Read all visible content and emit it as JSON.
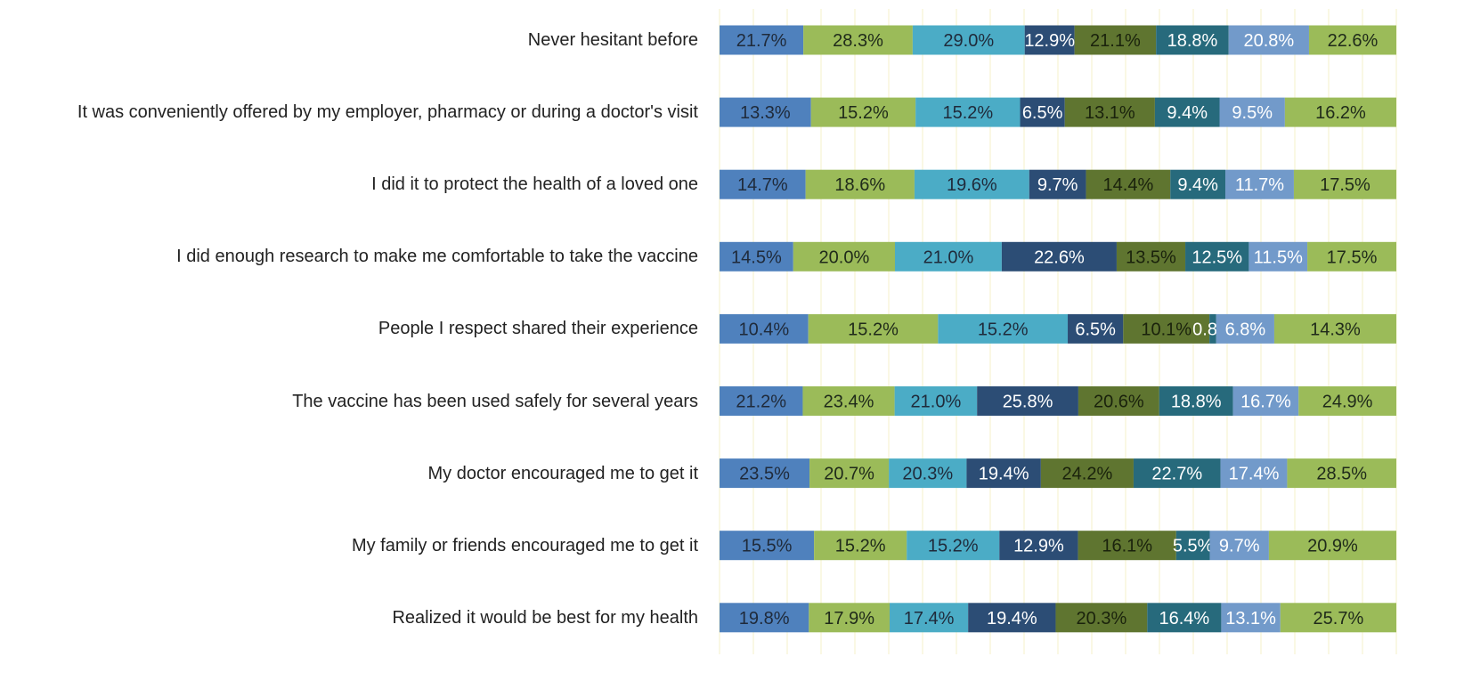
{
  "chart_data": {
    "type": "bar",
    "orientation": "horizontal",
    "stacking": "percent",
    "grid": true,
    "xlim": [
      0,
      100
    ],
    "xticks": [
      0,
      5,
      10,
      15,
      20,
      25,
      30,
      35,
      40,
      45,
      50,
      55,
      60,
      65,
      70,
      75,
      80,
      85,
      90,
      95,
      100
    ],
    "categories": [
      "Never hesitant before",
      "It was conveniently offered by my employer, pharmacy or during a doctor's visit",
      "I did it to protect the health of a loved one",
      "I did enough research to make me comfortable  to take the vaccine",
      "People I respect shared their experience",
      "The vaccine has been used safely for several years",
      "My doctor encouraged me to get it",
      "My family or friends encouraged me to get it",
      "Realized it would be best for my health"
    ],
    "series": [
      {
        "color": "#4f81bd",
        "label_color": "#1f2a3a",
        "values": [
          21.7,
          13.3,
          14.7,
          14.5,
          10.4,
          21.2,
          23.5,
          15.5,
          19.8
        ],
        "value_labels": [
          "21.7%",
          "13.3%",
          "14.7%",
          "14.5%",
          "10.4%",
          "21.2%",
          "23.5%",
          "15.5%",
          "19.8%"
        ]
      },
      {
        "color": "#9bbb59",
        "label_color": "#1f2a1a",
        "values": [
          28.3,
          15.2,
          18.6,
          20.0,
          15.2,
          23.4,
          20.7,
          15.2,
          17.9
        ],
        "value_labels": [
          "28.3%",
          "15.2%",
          "18.6%",
          "20.0%",
          "15.2%",
          "23.4%",
          "20.7%",
          "15.2%",
          "17.9%"
        ]
      },
      {
        "color": "#4bacc6",
        "label_color": "#1f2a3a",
        "values": [
          29.0,
          15.2,
          19.6,
          21.0,
          15.2,
          21.0,
          20.3,
          15.2,
          17.4
        ],
        "value_labels": [
          "29.0%",
          "15.2%",
          "19.6%",
          "21.0%",
          "15.2%",
          "21.0%",
          "20.3%",
          "15.2%",
          "17.4%"
        ]
      },
      {
        "color": "#2c4d75",
        "label_color": "#ffffff",
        "values": [
          12.9,
          6.5,
          9.7,
          22.6,
          6.5,
          25.8,
          19.4,
          12.9,
          19.4
        ],
        "value_labels": [
          "12.9%",
          "6.5%",
          "9.7%",
          "22.6%",
          "6.5%",
          "25.8%",
          "19.4%",
          "12.9%",
          "19.4%"
        ]
      },
      {
        "color": "#5f7530",
        "label_color": "#1a220c",
        "values": [
          21.1,
          13.1,
          14.4,
          13.5,
          10.1,
          20.6,
          24.2,
          16.1,
          20.3
        ],
        "value_labels": [
          "21.1%",
          "13.1%",
          "14.4%",
          "13.5%",
          "10.1%",
          "20.6%",
          "24.2%",
          "16.1%",
          "20.3%"
        ]
      },
      {
        "color": "#276a7c",
        "label_color": "#ffffff",
        "values": [
          18.8,
          9.4,
          9.4,
          12.5,
          0.8,
          18.8,
          22.7,
          5.5,
          16.4
        ],
        "value_labels": [
          "18.8%",
          "9.4%",
          "9.4%",
          "12.5%",
          "0.8%",
          "18.8%",
          "22.7%",
          "5.5%",
          "16.4%"
        ]
      },
      {
        "color": "#729aca",
        "label_color": "#ffffff",
        "values": [
          20.8,
          9.5,
          11.7,
          11.5,
          6.8,
          16.7,
          17.4,
          9.7,
          13.1
        ],
        "value_labels": [
          "20.8%",
          "9.5%",
          "11.7%",
          "11.5%",
          "6.8%",
          "16.7%",
          "17.4%",
          "9.7%",
          "13.1%"
        ]
      },
      {
        "color": "#9bbb59",
        "label_color": "#1f2a1a",
        "values": [
          22.6,
          16.2,
          17.5,
          17.5,
          14.3,
          24.9,
          28.5,
          20.9,
          25.7
        ],
        "value_labels": [
          "22.6%",
          "16.2%",
          "17.5%",
          "17.5%",
          "14.3%",
          "24.9%",
          "28.5%",
          "20.9%",
          "25.7%"
        ]
      }
    ]
  }
}
